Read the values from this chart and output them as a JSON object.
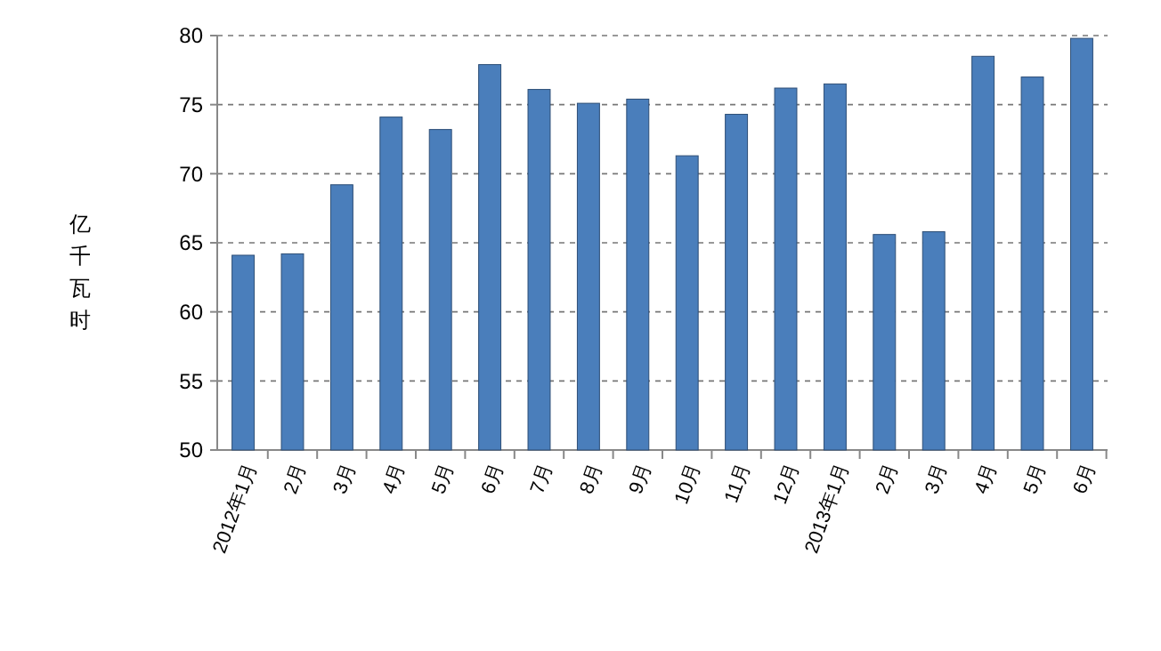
{
  "chart_data": {
    "type": "bar",
    "ylabel": "亿千瓦时",
    "categories": [
      "2012年1月",
      "2月",
      "3月",
      "4月",
      "5月",
      "6月",
      "7月",
      "8月",
      "9月",
      "10月",
      "11月",
      "12月",
      "2013年1月",
      "2月",
      "3月",
      "4月",
      "5月",
      "6月"
    ],
    "series": [
      {
        "color": "#4a7ebb",
        "values": [
          64.1,
          64.2,
          69.2,
          74.1,
          73.2,
          77.9,
          76.1,
          75.1,
          75.4,
          71.3,
          74.3,
          76.2,
          76.5,
          65.6,
          65.8,
          78.5,
          77.0,
          79.8
        ]
      }
    ],
    "ylim": [
      50,
      80
    ],
    "yticks": [
      50,
      55,
      60,
      65,
      70,
      75,
      80
    ],
    "grid": "y"
  }
}
